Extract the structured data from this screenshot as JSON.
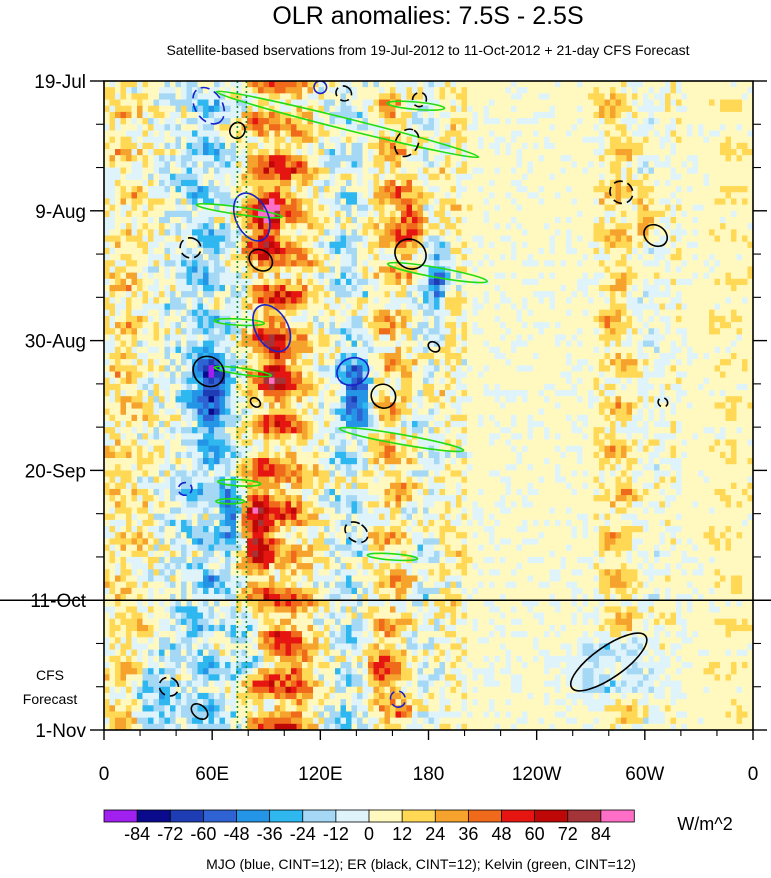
{
  "chart_data": {
    "type": "heatmap",
    "title": "OLR anomalies: 7.5S - 2.5S",
    "subtitle": "Satellite-based bservations from 19-Jul-2012 to 11-Oct-2012 + 21-day CFS Forecast",
    "x_axis": {
      "range_deg_east": [
        0,
        360
      ],
      "ticks": [
        {
          "deg": 0,
          "label": "0"
        },
        {
          "deg": 60,
          "label": "60E"
        },
        {
          "deg": 120,
          "label": "120E"
        },
        {
          "deg": 180,
          "label": "180"
        },
        {
          "deg": 240,
          "label": "120W"
        },
        {
          "deg": 300,
          "label": "60W"
        },
        {
          "deg": 360,
          "label": "0"
        }
      ]
    },
    "y_axis": {
      "range_days": [
        0,
        105
      ],
      "start_date": "19-Jul-2012",
      "ticks": [
        {
          "day": 0,
          "label": "19-Jul"
        },
        {
          "day": 21,
          "label": "9-Aug"
        },
        {
          "day": 42,
          "label": "30-Aug"
        },
        {
          "day": 63,
          "label": "20-Sep"
        },
        {
          "day": 84,
          "label": "11-Oct"
        },
        {
          "day": 105,
          "label": "1-Nov"
        }
      ],
      "forecast_start_day": 84,
      "forecast_label_line1": "CFS",
      "forecast_label_line2": "Forecast"
    },
    "colorbar": {
      "units": "W/m^2",
      "levels": [
        -84,
        -72,
        -60,
        -48,
        -36,
        -24,
        -12,
        0,
        12,
        24,
        36,
        48,
        60,
        72,
        84
      ],
      "labels": [
        "-84",
        "-72",
        "-60",
        "-48",
        "-36",
        "-24",
        "-12",
        "0",
        "12",
        "24",
        "36",
        "48",
        "60",
        "72",
        "84"
      ],
      "colors": [
        "#a020f0",
        "#0a0a8c",
        "#1e3cb4",
        "#2f63d3",
        "#2495e6",
        "#2fb7f0",
        "#a5d8f5",
        "#dff4fa",
        "#fff9c0",
        "#ffd955",
        "#f5a32c",
        "#f06a1c",
        "#e51612",
        "#be0808",
        "#a33438",
        "#ff6ec7"
      ]
    },
    "bands": [
      {
        "lon": 12,
        "width": 10,
        "amp": 20
      },
      {
        "lon": 42,
        "width": 12,
        "amp": -14
      },
      {
        "lon": 56,
        "width": 10,
        "amp": -30
      },
      {
        "lon": 72,
        "width": 10,
        "amp": -22
      },
      {
        "lon": 90,
        "width": 16,
        "amp": 44
      },
      {
        "lon": 108,
        "width": 10,
        "amp": 22
      },
      {
        "lon": 136,
        "width": 12,
        "amp": -24
      },
      {
        "lon": 160,
        "width": 12,
        "amp": 32
      },
      {
        "lon": 176,
        "width": 10,
        "amp": -18
      },
      {
        "lon": 192,
        "width": 8,
        "amp": 10
      },
      {
        "lon": 286,
        "width": 10,
        "amp": 26
      },
      {
        "lon": 300,
        "width": 8,
        "amp": -10
      },
      {
        "lon": 348,
        "width": 14,
        "amp": 10
      }
    ],
    "blobs": [
      {
        "lon": 90,
        "day": 22,
        "rx": 8,
        "ry": 5,
        "amp": 55
      },
      {
        "lon": 85,
        "day": 72,
        "rx": 8,
        "ry": 6,
        "amp": 55
      },
      {
        "lon": 95,
        "day": 45,
        "rx": 7,
        "ry": 6,
        "amp": 45
      },
      {
        "lon": 170,
        "day": 22,
        "rx": 8,
        "ry": 5,
        "amp": 45
      },
      {
        "lon": 60,
        "day": 50,
        "rx": 8,
        "ry": 7,
        "amp": -55
      },
      {
        "lon": 140,
        "day": 50,
        "rx": 7,
        "ry": 6,
        "amp": -55
      },
      {
        "lon": 70,
        "day": 70,
        "rx": 6,
        "ry": 6,
        "amp": -45
      },
      {
        "lon": 185,
        "day": 32,
        "rx": 6,
        "ry": 4,
        "amp": -60
      },
      {
        "lon": 280,
        "day": 95,
        "rx": 18,
        "ry": 5,
        "amp": -30
      },
      {
        "lon": 80,
        "day": 92,
        "rx": 8,
        "ry": 4,
        "amp": -30
      },
      {
        "lon": 300,
        "day": 22,
        "rx": 4,
        "ry": 4,
        "amp": 35
      },
      {
        "lon": 28,
        "day": 100,
        "rx": 10,
        "ry": 6,
        "amp": -28
      },
      {
        "lon": 105,
        "day": 96,
        "rx": 9,
        "ry": 6,
        "amp": 25
      },
      {
        "lon": 155,
        "day": 95,
        "rx": 8,
        "ry": 6,
        "amp": 22
      }
    ],
    "contours": {
      "mjo": [
        {
          "lon": 58,
          "day": 4,
          "rx": 11,
          "ry": 2.2,
          "angle": 57,
          "dash": true
        },
        {
          "lon": 82,
          "day": 22,
          "rx": 14,
          "ry": 2.6,
          "angle": 65,
          "dash": false
        },
        {
          "lon": 93,
          "day": 40,
          "rx": 14,
          "ry": 2.6,
          "angle": 60,
          "dash": false
        },
        {
          "lon": 138,
          "day": 47,
          "rx": 7.5,
          "ry": 2.6,
          "angle": 70,
          "dash": false
        },
        {
          "lon": 45,
          "day": 66,
          "rx": 3.5,
          "ry": 1.1,
          "angle": 75,
          "dash": true
        },
        {
          "lon": 163,
          "day": 100,
          "rx": 4.5,
          "ry": 1.2,
          "angle": 72,
          "dash": true
        },
        {
          "lon": 120,
          "day": 1,
          "rx": 3.5,
          "ry": 1.0,
          "angle": 20,
          "dash": false
        }
      ],
      "er": [
        {
          "lon": 74,
          "day": 8,
          "rx": 4.5,
          "ry": 1.2,
          "angle": -60,
          "dash": false
        },
        {
          "lon": 48,
          "day": 27,
          "rx": 5.5,
          "ry": 1.7,
          "angle": -60,
          "dash": true
        },
        {
          "lon": 87,
          "day": 29,
          "rx": 5.5,
          "ry": 2.0,
          "angle": -55,
          "dash": false
        },
        {
          "lon": 58,
          "day": 47,
          "rx": 8,
          "ry": 2.6,
          "angle": -50,
          "dash": false
        },
        {
          "lon": 170,
          "day": 28,
          "rx": 8,
          "ry": 2.6,
          "angle": -55,
          "dash": false
        },
        {
          "lon": 168,
          "day": 10,
          "rx": 8,
          "ry": 1.8,
          "angle": -60,
          "dash": true
        },
        {
          "lon": 155,
          "day": 51,
          "rx": 6.5,
          "ry": 2.0,
          "angle": -55,
          "dash": false
        },
        {
          "lon": 140,
          "day": 73,
          "rx": 5,
          "ry": 2.0,
          "angle": -55,
          "dash": true
        },
        {
          "lon": 306,
          "day": 25,
          "rx": 5.5,
          "ry": 2.0,
          "angle": -55,
          "dash": false
        },
        {
          "lon": 287,
          "day": 18,
          "rx": 6,
          "ry": 1.9,
          "angle": -55,
          "dash": true
        },
        {
          "lon": 280,
          "day": 94,
          "rx": 25,
          "ry": 2.5,
          "angle": -35,
          "dash": false
        },
        {
          "lon": 36,
          "day": 98,
          "rx": 5,
          "ry": 1.6,
          "angle": -55,
          "dash": true
        },
        {
          "lon": 53,
          "day": 102,
          "rx": 3.5,
          "ry": 1.5,
          "angle": -50,
          "dash": false
        },
        {
          "lon": 84,
          "day": 52,
          "rx": 2.2,
          "ry": 0.9,
          "angle": -50,
          "dash": false
        },
        {
          "lon": 310,
          "day": 52,
          "rx": 2.5,
          "ry": 0.8,
          "angle": -55,
          "dash": true
        },
        {
          "lon": 183,
          "day": 43,
          "rx": 2.5,
          "ry": 1.0,
          "angle": -55,
          "dash": false
        },
        {
          "lon": 175,
          "day": 3,
          "rx": 4,
          "ry": 1.1,
          "angle": -55,
          "dash": true
        },
        {
          "lon": 133,
          "day": 2,
          "rx": 4,
          "ry": 1.3,
          "angle": -55,
          "dash": true
        }
      ],
      "kelvin": [
        {
          "lon": 135,
          "day": 7,
          "rx": 75,
          "ry": 0.9,
          "angle": 14
        },
        {
          "lon": 75,
          "day": 21,
          "rx": 24,
          "ry": 0.6,
          "angle": 8
        },
        {
          "lon": 185,
          "day": 31,
          "rx": 28,
          "ry": 0.8,
          "angle": 10
        },
        {
          "lon": 77,
          "day": 47,
          "rx": 16,
          "ry": 0.5,
          "angle": 8
        },
        {
          "lon": 165,
          "day": 58,
          "rx": 35,
          "ry": 0.8,
          "angle": 10
        },
        {
          "lon": 173,
          "day": 4,
          "rx": 16,
          "ry": 0.6,
          "angle": 5
        },
        {
          "lon": 75,
          "day": 39,
          "rx": 14,
          "ry": 0.5,
          "angle": 3
        },
        {
          "lon": 75,
          "day": 65,
          "rx": 12,
          "ry": 0.5,
          "angle": 3
        },
        {
          "lon": 160,
          "day": 77,
          "rx": 14,
          "ry": 0.5,
          "angle": 4
        },
        {
          "lon": 70,
          "day": 68,
          "rx": 8,
          "ry": 0.4,
          "angle": 0
        }
      ],
      "kelvin_dotted_lon": [
        74,
        79
      ]
    },
    "footer": "MJO (blue, CINT=12); ER (black, CINT=12); Kelvin (green, CINT=12)"
  }
}
